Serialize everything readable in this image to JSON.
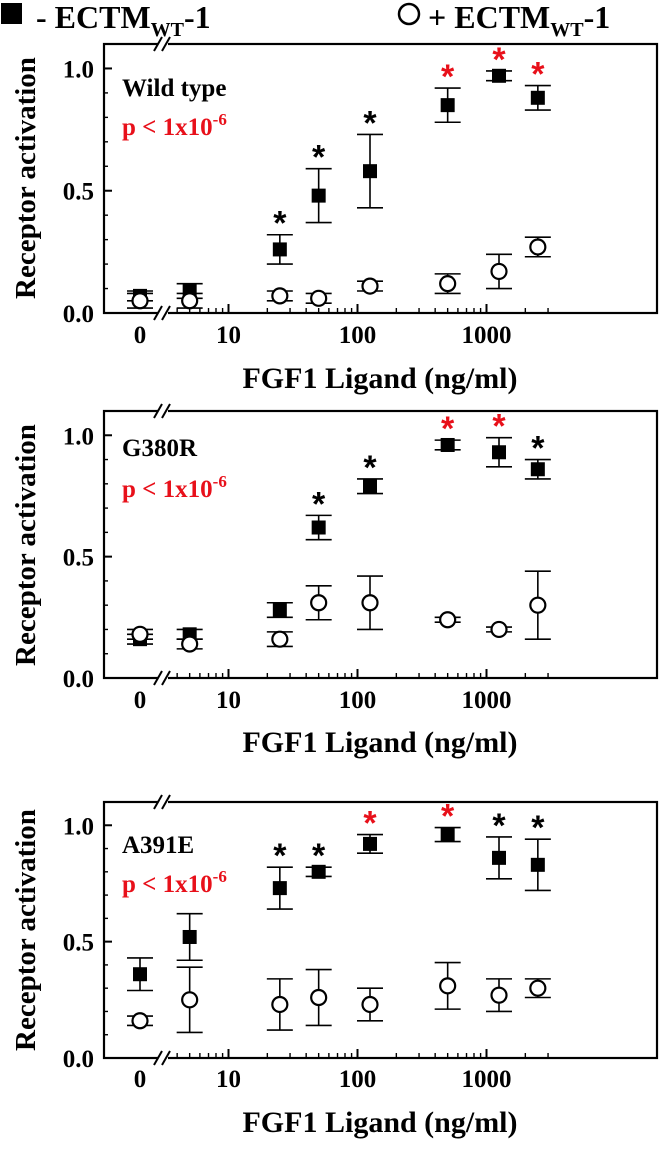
{
  "legend": {
    "items": [
      {
        "marker": "filled-square",
        "prefix": "- ECTM",
        "sub": "WT",
        "suffix": "-1"
      },
      {
        "marker": "open-circle",
        "prefix": "+ ECTM",
        "sub": "WT",
        "suffix": "-1"
      }
    ],
    "placement": "top"
  },
  "colors": {
    "significant_star": "#e8101a",
    "star": "#000000",
    "pvalue": "#e8101a",
    "axis": "#000000"
  },
  "chart_data": [
    {
      "type": "scatter",
      "panel_label": "Wild type",
      "pvalue": {
        "text": "p < 1x10",
        "exp": "-6"
      },
      "xlabel": "FGF1 Ligand (ng/ml)",
      "ylabel": "Receptor activation",
      "x_scale": "log with broken axis",
      "x_ticks": [
        "0",
        "10",
        "100",
        "1000"
      ],
      "y_ticks": [
        "0.0",
        "0.5",
        "1.0"
      ],
      "ylim": [
        0,
        1.1
      ],
      "grid": false,
      "x": [
        0,
        5,
        25,
        50,
        125,
        500,
        1250,
        2500
      ],
      "series": [
        {
          "legend_index": 0,
          "marker": "filled-square",
          "values": [
            0.07,
            0.09,
            0.26,
            0.48,
            0.58,
            0.85,
            0.97,
            0.88
          ],
          "errors": [
            0.02,
            0.03,
            0.06,
            0.11,
            0.15,
            0.07,
            0.02,
            0.05
          ]
        },
        {
          "legend_index": 1,
          "marker": "open-circle",
          "values": [
            0.05,
            0.05,
            0.07,
            0.06,
            0.11,
            0.12,
            0.17,
            0.27
          ],
          "errors": [
            0.03,
            0.03,
            0.02,
            0.02,
            0.02,
            0.04,
            0.07,
            0.04
          ]
        }
      ],
      "stars": [
        "",
        "",
        "black",
        "black",
        "black",
        "red",
        "red",
        "red"
      ]
    },
    {
      "type": "scatter",
      "panel_label": "G380R",
      "pvalue": {
        "text": "p < 1x10",
        "exp": "-6"
      },
      "xlabel": "FGF1 Ligand (ng/ml)",
      "ylabel": "Receptor activation",
      "x_scale": "log with broken axis",
      "x_ticks": [
        "0",
        "10",
        "100",
        "1000"
      ],
      "y_ticks": [
        "0.0",
        "0.5",
        "1.0"
      ],
      "ylim": [
        0,
        1.1
      ],
      "grid": false,
      "x": [
        0,
        5,
        25,
        50,
        125,
        500,
        1250,
        2500
      ],
      "series": [
        {
          "legend_index": 0,
          "marker": "filled-square",
          "values": [
            0.16,
            0.18,
            0.28,
            0.62,
            0.79,
            0.96,
            0.93,
            0.86
          ],
          "errors": [
            0.02,
            0.02,
            0.03,
            0.05,
            0.03,
            0.02,
            0.06,
            0.04
          ]
        },
        {
          "legend_index": 1,
          "marker": "open-circle",
          "values": [
            0.18,
            0.14,
            0.16,
            0.31,
            0.31,
            0.24,
            0.2,
            0.3
          ],
          "errors": [
            0.02,
            0.02,
            0.03,
            0.07,
            0.11,
            0.01,
            0.01,
            0.14
          ]
        }
      ],
      "stars": [
        "",
        "",
        "",
        "black",
        "black",
        "red",
        "red",
        "black"
      ]
    },
    {
      "type": "scatter",
      "panel_label": "A391E",
      "pvalue": {
        "text": "p < 1x10",
        "exp": "-6"
      },
      "xlabel": "FGF1 Ligand (ng/ml)",
      "ylabel": "Receptor activation",
      "x_scale": "log with broken axis",
      "x_ticks": [
        "0",
        "10",
        "100",
        "1000"
      ],
      "y_ticks": [
        "0.0",
        "0.5",
        "1.0"
      ],
      "ylim": [
        0,
        1.1
      ],
      "grid": false,
      "x": [
        0,
        5,
        25,
        50,
        125,
        500,
        1250,
        2500
      ],
      "series": [
        {
          "legend_index": 0,
          "marker": "filled-square",
          "values": [
            0.36,
            0.52,
            0.73,
            0.8,
            0.92,
            0.96,
            0.86,
            0.83
          ],
          "errors": [
            0.07,
            0.1,
            0.09,
            0.02,
            0.04,
            0.03,
            0.09,
            0.11
          ]
        },
        {
          "legend_index": 1,
          "marker": "open-circle",
          "values": [
            0.16,
            0.25,
            0.23,
            0.26,
            0.23,
            0.31,
            0.27,
            0.3
          ],
          "errors": [
            0.02,
            0.14,
            0.11,
            0.12,
            0.07,
            0.1,
            0.07,
            0.04
          ]
        }
      ],
      "stars": [
        "",
        "",
        "black",
        "black",
        "red",
        "red",
        "black",
        "black"
      ]
    }
  ]
}
